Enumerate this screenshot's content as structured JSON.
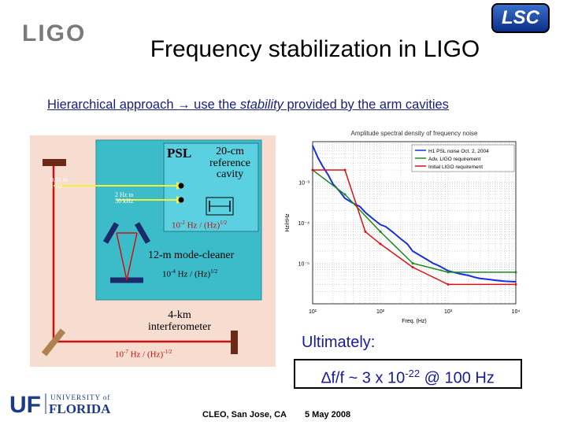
{
  "logos": {
    "ligo": "LIGO",
    "lsc": "LSC",
    "uf_mark": "UF",
    "uf_university": "UNIVERSITY of",
    "uf_florida": "FLORIDA"
  },
  "title": "Frequency stabilization in LIGO",
  "subtitle": {
    "part1": "Hierarchical approach",
    "arrow": "→",
    "part2": " use the ",
    "italic": "stability",
    "part3": " provided by the arm cavities"
  },
  "diagram": {
    "psl": "PSL",
    "ref_cavity_line1": "20-cm",
    "ref_cavity_line2": "reference",
    "ref_cavity_line3": "cavity",
    "ref_noise_base": "10",
    "ref_noise_exp": "-2",
    "ref_noise_unit": "Hz / (Hz)",
    "ref_noise_unit_exp": "1/2",
    "band1_line1": "0.01 to",
    "band1_line2": "1 Hz",
    "band2_line1": "2 Hz to",
    "band2_line2": "50 kHz",
    "mc_label": "12-m mode-cleaner",
    "mc_noise_base": "10",
    "mc_noise_exp": "-4",
    "mc_noise_unit": "Hz / (Hz)",
    "mc_noise_unit_exp": "1/2",
    "ifo_line1": "4-km",
    "ifo_line2": "interferometer",
    "ifo_noise_base": "10",
    "ifo_noise_exp": "-7",
    "ifo_noise_unit": "Hz / (Hz)",
    "ifo_noise_unit_exp": "-1/2"
  },
  "chart_data": {
    "type": "line",
    "title": "Amplitude spectral density of frequency noise",
    "xlabel": "Freq. (Hz)",
    "ylabel": "Hz/rtHz",
    "xscale": "log",
    "yscale": "log",
    "xlim": [
      10,
      10000
    ],
    "ylim": [
      1e-06,
      0.01
    ],
    "x_ticks": [
      "10¹",
      "10²",
      "10³",
      "10⁴"
    ],
    "y_ticks": [
      "10⁻³",
      "10⁻⁴",
      "10⁻⁵"
    ],
    "legend": [
      "H1 PSL noise Oct. 2, 2004",
      "Adv. LIGO requirement",
      "Initial LIGO requirement"
    ],
    "legend_placement": "top-right",
    "grid": true,
    "series": [
      {
        "name": "H1 PSL noise Oct. 2, 2004",
        "color": "#1530e0",
        "x": [
          10,
          12,
          14,
          17,
          20,
          25,
          30,
          40,
          50,
          60,
          80,
          100,
          120,
          150,
          200,
          250,
          300,
          400,
          500,
          600,
          700,
          800,
          1000,
          1200,
          1500,
          2000,
          2500,
          3000,
          4000,
          5000,
          7000,
          10000
        ],
        "y": [
          0.008,
          0.004,
          0.0025,
          0.0015,
          0.0009,
          0.0006,
          0.0004,
          0.0003,
          0.00025,
          0.00018,
          0.00012,
          9e-05,
          8e-05,
          6e-05,
          4e-05,
          3e-05,
          2e-05,
          1.5e-05,
          1.2e-05,
          1e-05,
          9e-06,
          8e-06,
          6.5e-06,
          6e-06,
          5.5e-06,
          5e-06,
          4.5e-06,
          4.2e-06,
          4e-06,
          3.8e-06,
          3.6e-06,
          3.5e-06
        ]
      },
      {
        "name": "Adv. LIGO requirement",
        "color": "#1a8a1a",
        "x": [
          10,
          30,
          100,
          300,
          1000,
          10000
        ],
        "y": [
          0.002,
          0.0005,
          6e-05,
          1e-05,
          6e-06,
          6e-06
        ]
      },
      {
        "name": "Initial LIGO requirement",
        "color": "#e01010",
        "x": [
          10,
          30,
          60,
          100,
          300,
          1000,
          10000
        ],
        "y": [
          0.002,
          0.002,
          6e-05,
          3e-05,
          8e-06,
          3e-06,
          3e-06
        ]
      }
    ]
  },
  "ultimately": "Ultimately:",
  "formula": {
    "delta": "∆",
    "text1": "f/f ~ 3 x 10",
    "exp": "-22",
    "text2": " @ 100 Hz"
  },
  "footer": {
    "conference": "CLEO, San Jose, CA",
    "date": "5 May 2008"
  }
}
